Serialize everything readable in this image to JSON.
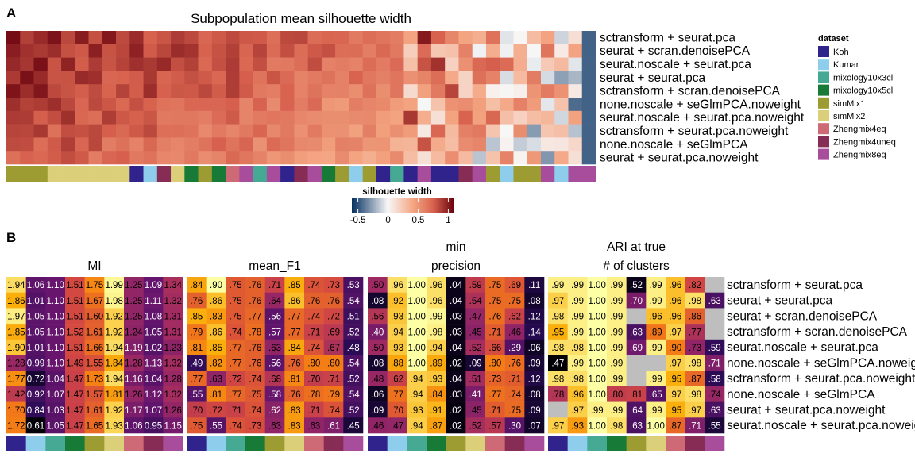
{
  "panel_a": {
    "label": "A",
    "title": "Subpopulation mean silhouette width",
    "row_labels": [
      "sctransform + seurat.pca",
      "seurat + scran.denoisePCA",
      "seurat.noscale + seurat.pca",
      "seurat + seurat.pca",
      "sctransform + scran.denoisePCA",
      "none.noscale + seGlmPCA.noweight",
      "seurat.noscale + seurat.pca.noweight",
      "sctransform + seurat.pca.noweight",
      "none.noscale + seGlmPCA",
      "seurat + seurat.pca.noweight"
    ],
    "dataset_strip": [
      "simMix1",
      "simMix1",
      "simMix1",
      "simMix2",
      "simMix2",
      "simMix2",
      "simMix2",
      "simMix2",
      "simMix2",
      "Koh",
      "Kumar",
      "Zhengmix4uneq",
      "simMix2",
      "mixology10x5cl",
      "simMix1",
      "mixology10x5cl",
      "Zhengmix4eq",
      "Zhengmix8eq",
      "mixology10x3cl",
      "Zhengmix8eq",
      "Koh",
      "Zhengmix4uneq",
      "Zhengmix8eq",
      "mixology10x5cl",
      "simMix1",
      "Kumar",
      "simMix1",
      "Koh",
      "mixology10x3cl",
      "Koh",
      "Zhengmix8eq",
      "Koh",
      "Koh",
      "Zhengmix4uneq",
      "Zhengmix8eq",
      "simMix1",
      "Kumar",
      "simMix1",
      "simMix1",
      "Zhengmix8eq",
      "Kumar",
      "Zhengmix8eq",
      "Zhengmix8eq"
    ],
    "legend_title": "dataset",
    "datasets": [
      {
        "name": "Koh",
        "color": "#31238c"
      },
      {
        "name": "Kumar",
        "color": "#8ecdeb"
      },
      {
        "name": "mixology10x3cl",
        "color": "#45a994"
      },
      {
        "name": "mixology10x5cl",
        "color": "#177a36"
      },
      {
        "name": "simMix1",
        "color": "#9c9c32"
      },
      {
        "name": "simMix2",
        "color": "#dccf7a"
      },
      {
        "name": "Zhengmix4eq",
        "color": "#cd6a76"
      },
      {
        "name": "Zhengmix4uneq",
        "color": "#862c55"
      },
      {
        "name": "Zhengmix8eq",
        "color": "#a84d9c"
      }
    ],
    "colorbar": {
      "title": "silhouette width",
      "ticks": [
        "-0.5",
        "0",
        "0.5",
        "1"
      ],
      "tick_values": [
        -0.5,
        0,
        0.5,
        1
      ],
      "range": [
        -0.6,
        1.1
      ]
    }
  },
  "panel_b": {
    "label": "B",
    "strip_datasets": [
      "Koh",
      "Kumar",
      "mixology10x3cl",
      "mixology10x5cl",
      "simMix1",
      "simMix2",
      "Zhengmix4eq",
      "Zhengmix4uneq",
      "Zhengmix8eq"
    ],
    "row_labels": [
      "sctransform + seurat.pca",
      "seurat + seurat.pca",
      "seurat + scran.denoisePCA",
      "sctransform + scran.denoisePCA",
      "seurat.noscale + seurat.pca",
      "none.noscale + seGlmPCA.noweight",
      "sctransform + seurat.pca.noweight",
      "none.noscale + seGlmPCA",
      "seurat + seurat.pca.noweight",
      "seurat.noscale + seurat.pca.noweight"
    ],
    "metrics": [
      {
        "name": "MI",
        "title_lines": [
          "MI"
        ],
        "palette_range": [
          0.6,
          2.0
        ],
        "values": [
          [
            "1.94",
            "1.06",
            "1.10",
            "1.51",
            "1.75",
            "1.99",
            "1.25",
            "1.09",
            "1.34"
          ],
          [
            "1.86",
            "1.01",
            "1.10",
            "1.51",
            "1.67",
            "1.98",
            "1.25",
            "1.11",
            "1.32"
          ],
          [
            "1.97",
            "1.05",
            "1.10",
            "1.51",
            "1.60",
            "1.92",
            "1.25",
            "1.08",
            "1.31"
          ],
          [
            "1.85",
            "1.05",
            "1.10",
            "1.52",
            "1.61",
            "1.92",
            "1.24",
            "1.05",
            "1.31"
          ],
          [
            "1.90",
            "1.01",
            "1.10",
            "1.51",
            "1.66",
            "1.94",
            "1.19",
            "1.02",
            "1.23"
          ],
          [
            "1.28",
            "0.99",
            "1.10",
            "1.49",
            "1.55",
            "1.84",
            "1.28",
            "1.13",
            "1.32"
          ],
          [
            "1.77",
            "0.72",
            "1.04",
            "1.47",
            "1.73",
            "1.94",
            "1.16",
            "1.04",
            "1.28"
          ],
          [
            "1.42",
            "0.92",
            "1.07",
            "1.47",
            "1.57",
            "1.81",
            "1.26",
            "1.12",
            "1.32"
          ],
          [
            "1.70",
            "0.84",
            "1.03",
            "1.47",
            "1.61",
            "1.92",
            "1.17",
            "1.07",
            "1.26"
          ],
          [
            "1.72",
            "0.61",
            "1.05",
            "1.47",
            "1.65",
            "1.93",
            "1.06",
            "0.95",
            "1.15"
          ]
        ]
      },
      {
        "name": "mean_F1",
        "title_lines": [
          "mean_F1"
        ],
        "palette_range": [
          0.4,
          0.9
        ],
        "values": [
          [
            ".84",
            ".90",
            ".75",
            ".76",
            ".71",
            ".85",
            ".74",
            ".73",
            ".53"
          ],
          [
            ".76",
            ".86",
            ".75",
            ".76",
            ".64",
            ".86",
            ".76",
            ".76",
            ".54"
          ],
          [
            ".85",
            ".83",
            ".75",
            ".77",
            ".56",
            ".77",
            ".74",
            ".72",
            ".51"
          ],
          [
            ".79",
            ".86",
            ".74",
            ".78",
            ".57",
            ".77",
            ".71",
            ".69",
            ".52"
          ],
          [
            ".81",
            ".85",
            ".77",
            ".76",
            ".63",
            ".84",
            ".74",
            ".67",
            ".48"
          ],
          [
            ".49",
            ".82",
            ".77",
            ".76",
            ".56",
            ".76",
            ".80",
            ".80",
            ".54"
          ],
          [
            ".77",
            ".63",
            ".72",
            ".74",
            ".68",
            ".81",
            ".70",
            ".71",
            ".52"
          ],
          [
            ".55",
            ".81",
            ".77",
            ".75",
            ".58",
            ".76",
            ".78",
            ".79",
            ".54"
          ],
          [
            ".70",
            ".72",
            ".71",
            ".74",
            ".62",
            ".83",
            ".71",
            ".74",
            ".52"
          ],
          [
            ".75",
            ".55",
            ".74",
            ".73",
            ".63",
            ".83",
            ".63",
            ".61",
            ".45"
          ]
        ]
      },
      {
        "name": "min precision",
        "title_lines": [
          "min",
          "precision"
        ],
        "palette_range": [
          0.0,
          1.0
        ],
        "values": [
          [
            ".50",
            ".96",
            "1.00",
            ".96",
            ".04",
            ".59",
            ".75",
            ".69",
            ".11"
          ],
          [
            ".08",
            ".92",
            "1.00",
            ".96",
            ".04",
            ".54",
            ".75",
            ".75",
            ".08"
          ],
          [
            ".56",
            ".93",
            "1.00",
            ".99",
            ".03",
            ".47",
            ".76",
            ".62",
            ".12"
          ],
          [
            ".40",
            ".94",
            "1.00",
            ".98",
            ".03",
            ".45",
            ".71",
            ".46",
            ".14"
          ],
          [
            ".50",
            ".93",
            "1.00",
            ".94",
            ".04",
            ".52",
            ".66",
            ".29",
            ".06"
          ],
          [
            ".08",
            ".88",
            "1.00",
            ".89",
            ".02",
            ".09",
            ".80",
            ".76",
            ".09"
          ],
          [
            ".48",
            ".62",
            ".94",
            ".93",
            ".04",
            ".51",
            ".73",
            ".71",
            ".12"
          ],
          [
            ".06",
            ".77",
            ".94",
            ".84",
            ".03",
            ".41",
            ".77",
            ".74",
            ".08"
          ],
          [
            ".09",
            ".70",
            ".93",
            ".91",
            ".02",
            ".45",
            ".71",
            ".75",
            ".09"
          ],
          [
            ".46",
            ".47",
            ".94",
            ".87",
            ".02",
            ".52",
            ".57",
            ".30",
            ".07"
          ]
        ]
      },
      {
        "name": "ARI at true # of clusters",
        "title_lines": [
          "ARI at true",
          "# of clusters"
        ],
        "palette_range": [
          0.5,
          1.0
        ],
        "values": [
          [
            ".99",
            ".99",
            "1.00",
            ".99",
            ".52",
            ".99",
            ".96",
            ".82",
            null
          ],
          [
            ".97",
            ".99",
            "1.00",
            ".99",
            ".70",
            ".99",
            ".96",
            ".98",
            ".63"
          ],
          [
            ".98",
            ".99",
            "1.00",
            ".99",
            null,
            ".96",
            ".96",
            ".86",
            null
          ],
          [
            ".95",
            ".99",
            "1.00",
            ".99",
            ".63",
            ".89",
            ".97",
            ".77",
            null
          ],
          [
            ".98",
            ".98",
            "1.00",
            ".99",
            ".69",
            ".99",
            ".90",
            ".73",
            ".59"
          ],
          [
            ".47",
            ".99",
            "1.00",
            ".99",
            null,
            null,
            ".97",
            ".98",
            ".71"
          ],
          [
            ".98",
            ".98",
            "1.00",
            ".99",
            null,
            ".99",
            ".95",
            ".87",
            ".58"
          ],
          [
            ".78",
            ".96",
            "1.00",
            ".80",
            ".81",
            ".65",
            ".97",
            ".98",
            ".74"
          ],
          [
            null,
            ".97",
            ".99",
            ".99",
            ".64",
            ".99",
            ".95",
            ".97",
            ".63"
          ],
          [
            ".97",
            ".93",
            "1.00",
            ".98",
            ".63",
            "1.00",
            ".87",
            ".71",
            ".55"
          ]
        ]
      }
    ]
  },
  "chart_data": [
    {
      "type": "heatmap",
      "title": "Subpopulation mean silhouette width",
      "rows": [
        "sctransform + seurat.pca",
        "seurat + scran.denoisePCA",
        "seurat.noscale + seurat.pca",
        "seurat + seurat.pca",
        "sctransform + scran.denoisePCA",
        "none.noscale + seGlmPCA.noweight",
        "seurat.noscale + seurat.pca.noweight",
        "sctransform + seurat.pca.noweight",
        "none.noscale + seGlmPCA",
        "seurat + seurat.pca.noweight"
      ],
      "n_columns": 43,
      "column_profile": [
        0.95,
        0.93,
        0.92,
        0.9,
        0.88,
        0.87,
        0.86,
        0.85,
        0.84,
        0.83,
        0.82,
        0.81,
        0.8,
        0.79,
        0.78,
        0.77,
        0.76,
        0.75,
        0.74,
        0.73,
        0.72,
        0.7,
        0.69,
        0.68,
        0.66,
        0.64,
        0.62,
        0.6,
        0.58,
        0.55,
        0.52,
        0.48,
        0.45,
        0.42,
        0.38,
        0.34,
        0.3,
        0.26,
        0.22,
        0.18,
        0.12,
        0.05,
        -0.45
      ],
      "row_offsets": [
        0.05,
        0.03,
        0.02,
        0.0,
        0.0,
        -0.08,
        -0.06,
        -0.1,
        -0.12,
        -0.15
      ],
      "colorbar_range": [
        -0.6,
        1.1
      ]
    },
    {
      "type": "heatmap",
      "metrics": [
        "MI",
        "mean_F1",
        "min precision",
        "ARI at true # of clusters"
      ],
      "columns": [
        "Koh",
        "Kumar",
        "mixology10x3cl",
        "mixology10x5cl",
        "simMix1",
        "simMix2",
        "Zhengmix4eq",
        "Zhengmix4uneq",
        "Zhengmix8eq"
      ]
    }
  ]
}
